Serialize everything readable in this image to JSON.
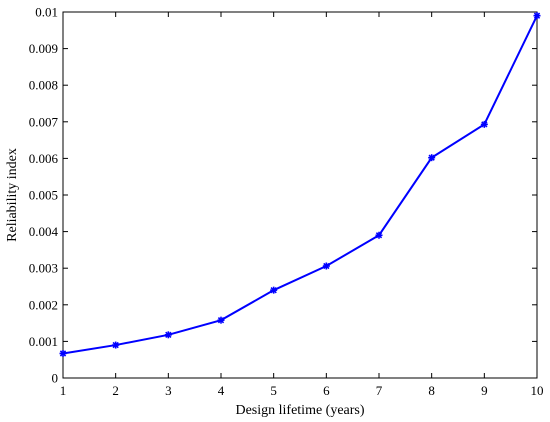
{
  "chart_data": {
    "type": "line",
    "title": "",
    "xlabel": "Design lifetime (years)",
    "ylabel": "Reliability index",
    "xlim": [
      1,
      10
    ],
    "ylim": [
      0,
      0.01
    ],
    "xticks": [
      "1",
      "2",
      "3",
      "4",
      "5",
      "6",
      "7",
      "8",
      "9",
      "10"
    ],
    "yticks": [
      "0",
      "0.001",
      "0.002",
      "0.003",
      "0.004",
      "0.005",
      "0.006",
      "0.007",
      "0.008",
      "0.009",
      "0.01"
    ],
    "grid": false,
    "series": [
      {
        "color": "#0000ff",
        "marker": "asterisk",
        "x": [
          1,
          2,
          3,
          4,
          5,
          6,
          7,
          8,
          9,
          10
        ],
        "y": [
          0.00067,
          0.0009,
          0.00118,
          0.00158,
          0.0024,
          0.00306,
          0.0039,
          0.00602,
          0.00693,
          0.0099
        ]
      }
    ]
  }
}
